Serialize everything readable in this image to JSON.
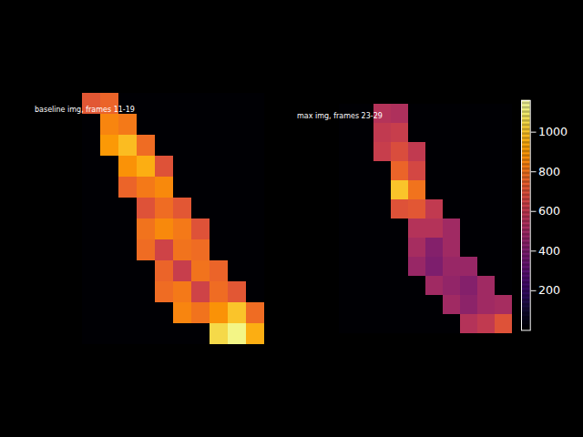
{
  "chart_data": {
    "type": "heatmap",
    "color": "inferno",
    "tick_labels": false,
    "panels": [
      {
        "title": "baseline img, frames 11-19",
        "cells": [
          [
            720,
            760,
            0,
            0,
            0,
            0,
            0,
            0,
            0,
            0
          ],
          [
            0,
            850,
            820,
            0,
            0,
            0,
            0,
            0,
            0,
            0
          ],
          [
            0,
            900,
            980,
            780,
            0,
            0,
            0,
            0,
            0,
            0
          ],
          [
            0,
            0,
            880,
            950,
            700,
            0,
            0,
            0,
            0,
            0
          ],
          [
            0,
            0,
            760,
            820,
            860,
            0,
            0,
            0,
            0,
            0
          ],
          [
            0,
            0,
            0,
            700,
            780,
            720,
            0,
            0,
            0,
            0
          ],
          [
            0,
            0,
            0,
            800,
            860,
            820,
            700,
            0,
            0,
            0
          ],
          [
            0,
            0,
            0,
            780,
            640,
            800,
            780,
            0,
            0,
            0
          ],
          [
            0,
            0,
            0,
            0,
            760,
            620,
            800,
            760,
            0,
            0
          ],
          [
            0,
            0,
            0,
            0,
            780,
            820,
            640,
            780,
            720,
            0
          ],
          [
            0,
            0,
            0,
            0,
            0,
            850,
            800,
            880,
            1000,
            780
          ],
          [
            0,
            0,
            0,
            0,
            0,
            0,
            0,
            1050,
            1120,
            950
          ]
        ]
      },
      {
        "title": "max img, frames 23-29",
        "cells": [
          [
            0,
            0,
            560,
            540,
            0,
            0,
            0,
            0,
            0,
            0
          ],
          [
            0,
            0,
            600,
            620,
            0,
            0,
            0,
            0,
            0,
            0
          ],
          [
            0,
            0,
            620,
            680,
            600,
            0,
            0,
            0,
            0,
            0
          ],
          [
            0,
            0,
            0,
            760,
            660,
            0,
            0,
            0,
            0,
            0
          ],
          [
            0,
            0,
            0,
            1000,
            800,
            0,
            0,
            0,
            0,
            0
          ],
          [
            0,
            0,
            0,
            700,
            720,
            600,
            0,
            0,
            0,
            0
          ],
          [
            0,
            0,
            0,
            0,
            560,
            560,
            500,
            0,
            0,
            0
          ],
          [
            0,
            0,
            0,
            0,
            520,
            420,
            500,
            0,
            0,
            0
          ],
          [
            0,
            0,
            0,
            0,
            480,
            400,
            480,
            480,
            0,
            0
          ],
          [
            0,
            0,
            0,
            0,
            0,
            500,
            460,
            420,
            500,
            0
          ],
          [
            0,
            0,
            0,
            0,
            0,
            0,
            500,
            440,
            500,
            520
          ],
          [
            0,
            0,
            0,
            0,
            0,
            0,
            0,
            560,
            600,
            700
          ]
        ]
      }
    ],
    "colorbar": {
      "range": [
        0,
        1160
      ],
      "ticks": [
        200,
        400,
        600,
        800,
        1000
      ]
    }
  }
}
